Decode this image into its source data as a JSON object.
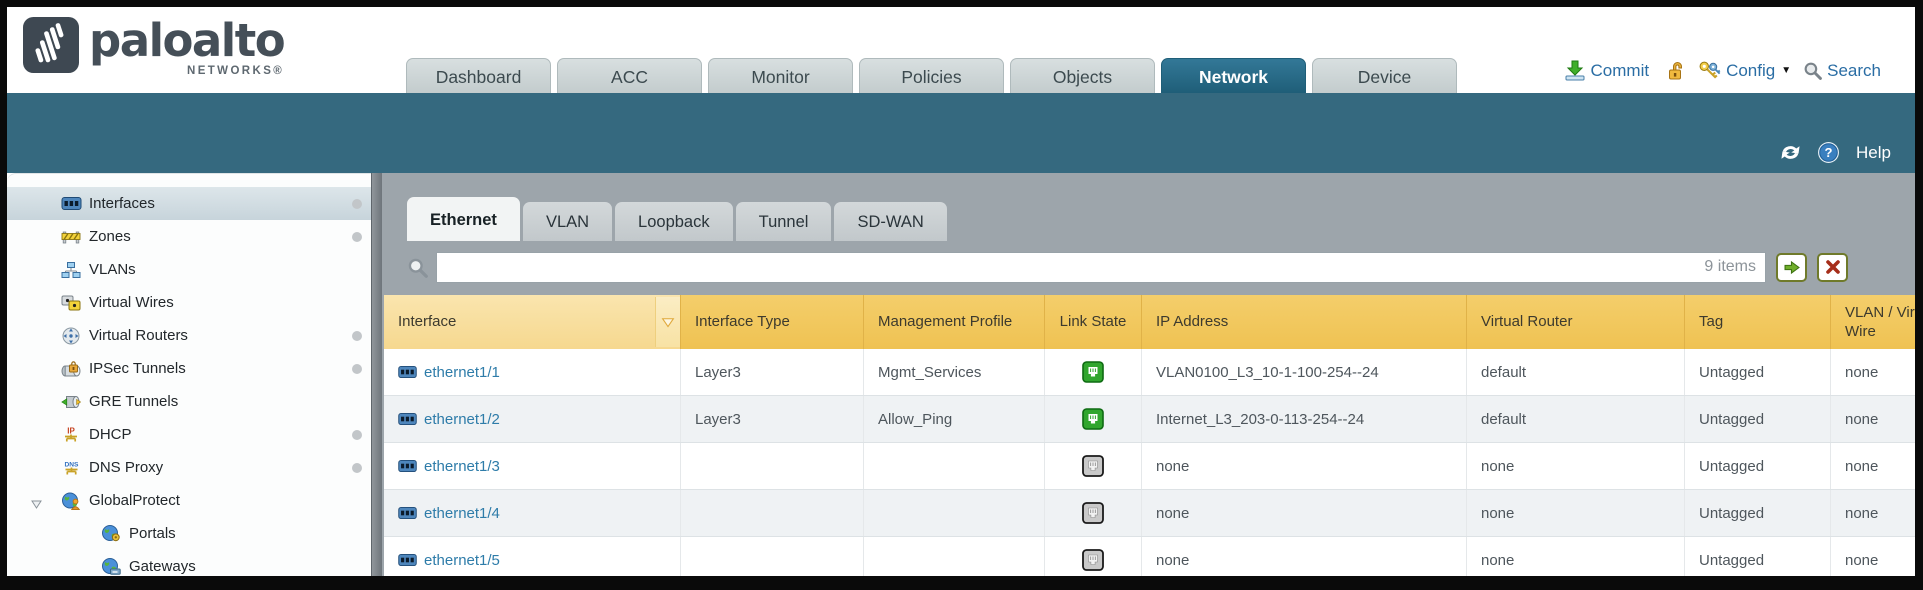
{
  "header": {
    "brand": "paloalto",
    "brand_sub": "NETWORKS®",
    "nav_tabs": [
      {
        "label": "Dashboard",
        "active": false
      },
      {
        "label": "ACC",
        "active": false
      },
      {
        "label": "Monitor",
        "active": false
      },
      {
        "label": "Policies",
        "active": false
      },
      {
        "label": "Objects",
        "active": false
      },
      {
        "label": "Network",
        "active": true
      },
      {
        "label": "Device",
        "active": false
      }
    ],
    "actions": {
      "commit": "Commit",
      "config": "Config",
      "search": "Search"
    }
  },
  "toolbar": {
    "help": "Help"
  },
  "sidebar": {
    "items": [
      {
        "label": "Interfaces",
        "icon": "interfaces-icon",
        "selected": true,
        "dot": true,
        "indent": 0
      },
      {
        "label": "Zones",
        "icon": "zones-icon",
        "selected": false,
        "dot": true,
        "indent": 0
      },
      {
        "label": "VLANs",
        "icon": "vlans-icon",
        "selected": false,
        "dot": false,
        "indent": 0
      },
      {
        "label": "Virtual Wires",
        "icon": "virtual-wires-icon",
        "selected": false,
        "dot": false,
        "indent": 0
      },
      {
        "label": "Virtual Routers",
        "icon": "virtual-routers-icon",
        "selected": false,
        "dot": true,
        "indent": 0
      },
      {
        "label": "IPSec Tunnels",
        "icon": "ipsec-tunnels-icon",
        "selected": false,
        "dot": true,
        "indent": 0
      },
      {
        "label": "GRE Tunnels",
        "icon": "gre-tunnels-icon",
        "selected": false,
        "dot": false,
        "indent": 0
      },
      {
        "label": "DHCP",
        "icon": "dhcp-icon",
        "selected": false,
        "dot": true,
        "indent": 0
      },
      {
        "label": "DNS Proxy",
        "icon": "dns-proxy-icon",
        "selected": false,
        "dot": true,
        "indent": 0
      },
      {
        "label": "GlobalProtect",
        "icon": "globalprotect-icon",
        "selected": false,
        "dot": false,
        "indent": 0,
        "expanded": true
      },
      {
        "label": "Portals",
        "icon": "portals-icon",
        "selected": false,
        "dot": false,
        "indent": 1
      },
      {
        "label": "Gateways",
        "icon": "gateways-icon",
        "selected": false,
        "dot": false,
        "indent": 1
      }
    ]
  },
  "main": {
    "tabs": [
      {
        "label": "Ethernet",
        "active": true
      },
      {
        "label": "VLAN",
        "active": false
      },
      {
        "label": "Loopback",
        "active": false
      },
      {
        "label": "Tunnel",
        "active": false
      },
      {
        "label": "SD-WAN",
        "active": false
      }
    ],
    "search": {
      "value": "",
      "items_count": "9 items"
    },
    "table": {
      "columns": [
        "Interface",
        "Interface Type",
        "Management Profile",
        "Link State",
        "IP Address",
        "Virtual Router",
        "Tag",
        "VLAN / Virtual Wire"
      ],
      "rows": [
        {
          "name": "ethernet1/1",
          "type": "Layer3",
          "profile": "Mgmt_Services",
          "link_state": "up",
          "ip": "VLAN0100_L3_10-1-100-254--24",
          "router": "default",
          "tag": "Untagged",
          "vlan": "none"
        },
        {
          "name": "ethernet1/2",
          "type": "Layer3",
          "profile": "Allow_Ping",
          "link_state": "up",
          "ip": "Internet_L3_203-0-113-254--24",
          "router": "default",
          "tag": "Untagged",
          "vlan": "none"
        },
        {
          "name": "ethernet1/3",
          "type": "",
          "profile": "",
          "link_state": "unknown",
          "ip": "none",
          "router": "none",
          "tag": "Untagged",
          "vlan": "none"
        },
        {
          "name": "ethernet1/4",
          "type": "",
          "profile": "",
          "link_state": "unknown",
          "ip": "none",
          "router": "none",
          "tag": "Untagged",
          "vlan": "none"
        },
        {
          "name": "ethernet1/5",
          "type": "",
          "profile": "",
          "link_state": "unknown",
          "ip": "none",
          "router": "none",
          "tag": "Untagged",
          "vlan": "none"
        }
      ]
    }
  },
  "colors": {
    "teal_bar": "#35697f",
    "active_tab": "#1f5e78",
    "table_header_orange": "#efc252",
    "table_header_sorted": "#f6d88f",
    "link_blue": "#2e7ca9",
    "action_blue": "#2a6da4",
    "link_up_green": "#31a62e",
    "link_unknown_gray": "#c9c9c9"
  }
}
